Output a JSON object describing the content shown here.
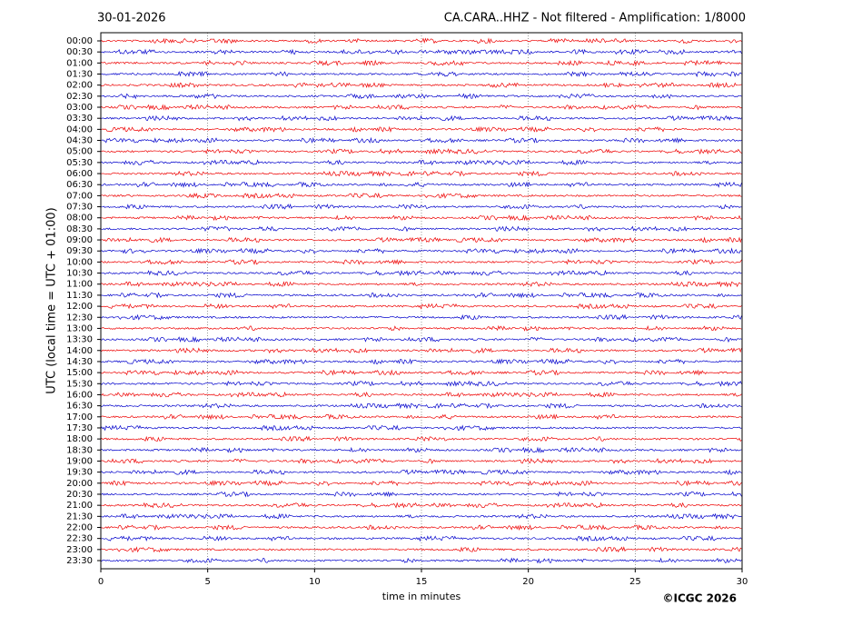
{
  "chart_data": {
    "type": "helicorder",
    "title_left": "30-01-2026",
    "title": "CA.CARA..HHZ - Not filtered - Amplification: 1/8000",
    "ylabel": "UTC (local time = UTC + 01:00)",
    "xlabel": "time in minutes",
    "credit": "©ICGC 2026",
    "categories": [
      "00:00",
      "00:30",
      "01:00",
      "01:30",
      "02:00",
      "02:30",
      "03:00",
      "03:30",
      "04:00",
      "04:30",
      "05:00",
      "05:30",
      "06:00",
      "06:30",
      "07:00",
      "07:30",
      "08:00",
      "08:30",
      "09:00",
      "09:30",
      "10:00",
      "10:30",
      "11:00",
      "11:30",
      "12:00",
      "12:30",
      "13:00",
      "13:30",
      "14:00",
      "14:30",
      "15:00",
      "15:30",
      "16:00",
      "16:30",
      "17:00",
      "17:30",
      "18:00",
      "18:30",
      "19:00",
      "19:30",
      "20:00",
      "20:30",
      "21:00",
      "21:30",
      "22:00",
      "22:30",
      "23:00",
      "23:30"
    ],
    "colors": [
      "#ee0000",
      "#0000cc"
    ],
    "xlim": [
      0,
      30
    ],
    "xticks": [
      0,
      5,
      10,
      15,
      20,
      25,
      30
    ],
    "grid": true
  }
}
